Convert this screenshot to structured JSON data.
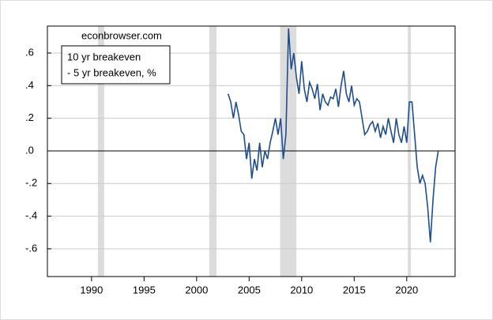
{
  "chart_data": {
    "type": "line",
    "annotation": "econbrowser.com",
    "legend": [
      "10 yr breakeven",
      "- 5 yr breakeven, %"
    ],
    "color": "#1f4e8c",
    "shaded_periods": [
      [
        1990.6,
        1991.2
      ],
      [
        2001.2,
        2001.9
      ],
      [
        2007.95,
        2009.5
      ],
      [
        2020.1,
        2020.4
      ]
    ],
    "shade_color": "#dcdcdc",
    "x": [
      2003,
      2003.25,
      2003.5,
      2003.75,
      2004,
      2004.25,
      2004.5,
      2004.75,
      2005,
      2005.25,
      2005.5,
      2005.75,
      2006,
      2006.25,
      2006.5,
      2006.75,
      2007,
      2007.25,
      2007.5,
      2007.75,
      2008,
      2008.25,
      2008.5,
      2008.75,
      2009,
      2009.25,
      2009.5,
      2009.75,
      2010,
      2010.25,
      2010.5,
      2010.75,
      2011,
      2011.25,
      2011.5,
      2011.75,
      2012,
      2012.25,
      2012.5,
      2012.75,
      2013,
      2013.25,
      2013.5,
      2013.75,
      2014,
      2014.25,
      2014.5,
      2014.75,
      2015,
      2015.25,
      2015.5,
      2015.75,
      2016,
      2016.25,
      2016.5,
      2016.75,
      2017,
      2017.25,
      2017.5,
      2017.75,
      2018,
      2018.25,
      2018.5,
      2018.75,
      2019,
      2019.25,
      2019.5,
      2019.75,
      2020,
      2020.25,
      2020.5,
      2020.75,
      2021,
      2021.25,
      2021.5,
      2021.75,
      2022,
      2022.25,
      2022.5,
      2022.75,
      2023
    ],
    "values": [
      0.35,
      0.3,
      0.2,
      0.3,
      0.22,
      0.12,
      0.1,
      -0.05,
      0.05,
      -0.17,
      -0.05,
      -0.12,
      0.05,
      -0.1,
      0.0,
      -0.05,
      0.05,
      0.12,
      0.2,
      0.1,
      0.2,
      -0.05,
      0.1,
      0.75,
      0.5,
      0.6,
      0.45,
      0.35,
      0.55,
      0.38,
      0.3,
      0.42,
      0.38,
      0.32,
      0.41,
      0.25,
      0.35,
      0.3,
      0.28,
      0.33,
      0.32,
      0.38,
      0.27,
      0.4,
      0.49,
      0.35,
      0.3,
      0.4,
      0.28,
      0.32,
      0.3,
      0.2,
      0.1,
      0.12,
      0.16,
      0.18,
      0.12,
      0.17,
      0.08,
      0.15,
      0.1,
      0.2,
      0.12,
      0.05,
      0.2,
      0.1,
      0.05,
      0.15,
      0.05,
      0.3,
      0.3,
      0.1,
      -0.1,
      -0.2,
      -0.15,
      -0.2,
      -0.35,
      -0.56,
      -0.3,
      -0.1,
      0.0
    ],
    "xlim": [
      1985.8,
      2024.6
    ],
    "xticks": [
      1990,
      1995,
      2000,
      2005,
      2010,
      2015,
      2020
    ],
    "ylim": [
      -0.77,
      0.765
    ],
    "yticks": [
      {
        "value": 0.6,
        "label": ".6"
      },
      {
        "value": 0.4,
        "label": ".4"
      },
      {
        "value": 0.2,
        "label": ".2"
      },
      {
        "value": 0.0,
        "label": ".0"
      },
      {
        "value": -0.2,
        "label": "-.2"
      },
      {
        "value": -0.4,
        "label": "-.4"
      },
      {
        "value": -0.6,
        "label": "-.6"
      }
    ],
    "grid": true
  }
}
